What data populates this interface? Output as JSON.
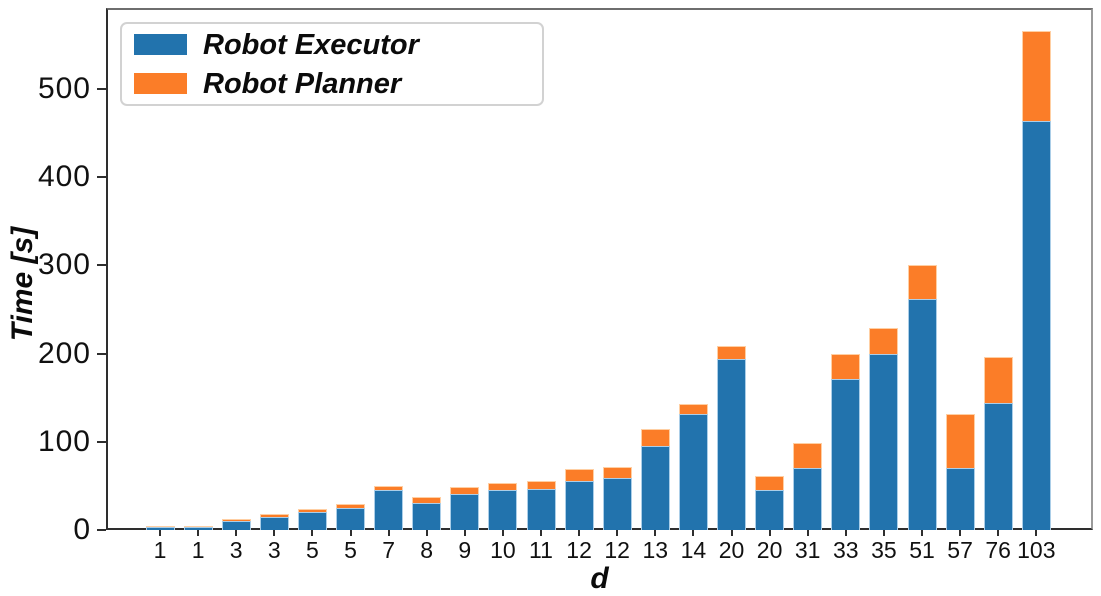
{
  "chart_data": {
    "type": "bar",
    "stacked": true,
    "title": "",
    "xlabel": "d",
    "ylabel": "Time [s]",
    "categories": [
      "1",
      "1",
      "3",
      "3",
      "5",
      "5",
      "7",
      "8",
      "9",
      "10",
      "11",
      "12",
      "12",
      "13",
      "14",
      "20",
      "20",
      "31",
      "33",
      "35",
      "51",
      "57",
      "76",
      "103"
    ],
    "series": [
      {
        "name": "Robot Executor",
        "color": "#2273ad",
        "values": [
          3,
          4,
          10,
          15,
          20,
          25,
          45,
          31,
          41,
          45,
          46,
          56,
          59,
          95,
          131,
          194,
          45,
          70,
          171,
          200,
          262,
          70,
          144,
          464
        ]
      },
      {
        "name": "Robot Planner",
        "color": "#fb7d28",
        "values": [
          1,
          1,
          3,
          3,
          4,
          5,
          5,
          6,
          8,
          8,
          10,
          13,
          13,
          20,
          12,
          15,
          16,
          29,
          29,
          29,
          38,
          62,
          52,
          102
        ]
      }
    ],
    "totals": [
      4,
      5,
      13,
      18,
      24,
      30,
      50,
      37,
      49,
      53,
      56,
      69,
      72,
      115,
      143,
      209,
      61,
      99,
      200,
      229,
      300,
      132,
      196,
      566
    ],
    "yticks": [
      0,
      100,
      200,
      300,
      400,
      500
    ],
    "ylim": [
      0,
      592
    ],
    "grid": false,
    "legend_position": "upper-left"
  }
}
